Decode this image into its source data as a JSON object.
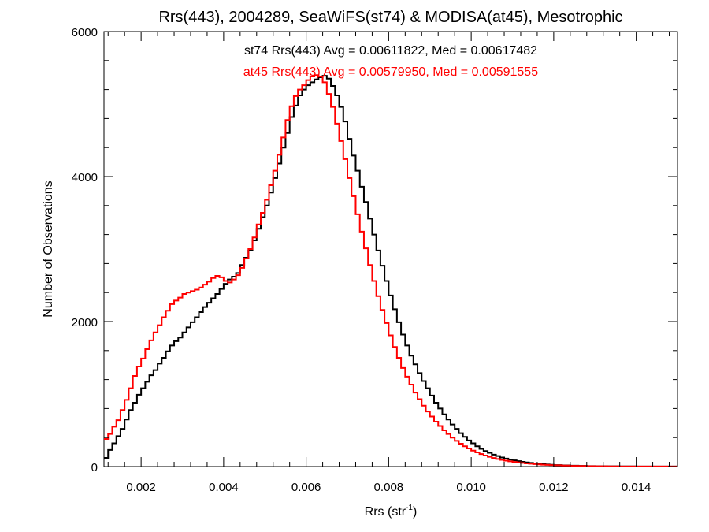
{
  "chart_data": {
    "type": "line",
    "title": "Rrs(443), 2004289, SeaWiFS(st74) & MODISA(at45), Mesotrophic",
    "xlabel_main": "Rrs (str",
    "xlabel_sup": "-1",
    "xlabel_close": ")",
    "ylabel": "Number of Observations",
    "xlim": [
      0.0011,
      0.015
    ],
    "ylim": [
      0,
      6000
    ],
    "x_ticks": [
      "0.002",
      "0.004",
      "0.006",
      "0.008",
      "0.010",
      "0.012",
      "0.014"
    ],
    "y_ticks": [
      "0",
      "2000",
      "4000",
      "6000"
    ],
    "grid": false,
    "annotations": [
      {
        "text": "st74 Rrs(443) Avg = 0.00611822, Med = 0.00617482",
        "color": "#000000"
      },
      {
        "text": "at45 Rrs(443) Avg = 0.00579950, Med = 0.00591555",
        "color": "#ff0000"
      }
    ],
    "series": [
      {
        "color": "#000000",
        "style": "step",
        "points": [
          [
            0.0011,
            120
          ],
          [
            0.0012,
            230
          ],
          [
            0.0013,
            320
          ],
          [
            0.0014,
            420
          ],
          [
            0.0015,
            520
          ],
          [
            0.0016,
            650
          ],
          [
            0.0017,
            780
          ],
          [
            0.0018,
            880
          ],
          [
            0.0019,
            990
          ],
          [
            0.002,
            1080
          ],
          [
            0.0021,
            1170
          ],
          [
            0.0022,
            1260
          ],
          [
            0.0023,
            1330
          ],
          [
            0.0024,
            1420
          ],
          [
            0.0025,
            1500
          ],
          [
            0.0026,
            1590
          ],
          [
            0.0027,
            1670
          ],
          [
            0.0028,
            1730
          ],
          [
            0.0029,
            1780
          ],
          [
            0.003,
            1850
          ],
          [
            0.0031,
            1920
          ],
          [
            0.0032,
            1990
          ],
          [
            0.0033,
            2060
          ],
          [
            0.0034,
            2130
          ],
          [
            0.0035,
            2200
          ],
          [
            0.0036,
            2260
          ],
          [
            0.0037,
            2320
          ],
          [
            0.0038,
            2380
          ],
          [
            0.0039,
            2450
          ],
          [
            0.004,
            2520
          ],
          [
            0.0041,
            2580
          ],
          [
            0.0042,
            2620
          ],
          [
            0.0043,
            2670
          ],
          [
            0.0044,
            2780
          ],
          [
            0.0045,
            2880
          ],
          [
            0.0046,
            2980
          ],
          [
            0.0047,
            3120
          ],
          [
            0.0048,
            3280
          ],
          [
            0.0049,
            3440
          ],
          [
            0.005,
            3600
          ],
          [
            0.0051,
            3780
          ],
          [
            0.0052,
            3980
          ],
          [
            0.0053,
            4180
          ],
          [
            0.0054,
            4400
          ],
          [
            0.0055,
            4600
          ],
          [
            0.0056,
            4820
          ],
          [
            0.0057,
            4980
          ],
          [
            0.0058,
            5120
          ],
          [
            0.0059,
            5200
          ],
          [
            0.006,
            5260
          ],
          [
            0.0061,
            5300
          ],
          [
            0.0062,
            5340
          ],
          [
            0.0063,
            5370
          ],
          [
            0.0064,
            5390
          ],
          [
            0.0065,
            5350
          ],
          [
            0.0066,
            5250
          ],
          [
            0.0067,
            5120
          ],
          [
            0.0068,
            4960
          ],
          [
            0.0069,
            4760
          ],
          [
            0.007,
            4520
          ],
          [
            0.0071,
            4290
          ],
          [
            0.0072,
            4080
          ],
          [
            0.0073,
            3860
          ],
          [
            0.0074,
            3650
          ],
          [
            0.0075,
            3420
          ],
          [
            0.0076,
            3200
          ],
          [
            0.0077,
            2980
          ],
          [
            0.0078,
            2770
          ],
          [
            0.0079,
            2560
          ],
          [
            0.008,
            2360
          ],
          [
            0.0081,
            2170
          ],
          [
            0.0082,
            1990
          ],
          [
            0.0083,
            1820
          ],
          [
            0.0084,
            1670
          ],
          [
            0.0085,
            1530
          ],
          [
            0.0086,
            1410
          ],
          [
            0.0087,
            1290
          ],
          [
            0.0088,
            1180
          ],
          [
            0.0089,
            1080
          ],
          [
            0.009,
            980
          ],
          [
            0.0091,
            880
          ],
          [
            0.0092,
            800
          ],
          [
            0.0093,
            720
          ],
          [
            0.0094,
            650
          ],
          [
            0.0095,
            580
          ],
          [
            0.0096,
            520
          ],
          [
            0.0097,
            460
          ],
          [
            0.0098,
            410
          ],
          [
            0.0099,
            360
          ],
          [
            0.01,
            320
          ],
          [
            0.0101,
            280
          ],
          [
            0.0102,
            245
          ],
          [
            0.0103,
            215
          ],
          [
            0.0104,
            190
          ],
          [
            0.0105,
            165
          ],
          [
            0.0106,
            145
          ],
          [
            0.0107,
            125
          ],
          [
            0.0108,
            110
          ],
          [
            0.0109,
            95
          ],
          [
            0.011,
            85
          ],
          [
            0.0111,
            75
          ],
          [
            0.0112,
            65
          ],
          [
            0.0113,
            57
          ],
          [
            0.0114,
            50
          ],
          [
            0.0115,
            44
          ],
          [
            0.0116,
            38
          ],
          [
            0.0117,
            33
          ],
          [
            0.0118,
            28
          ],
          [
            0.0119,
            24
          ],
          [
            0.012,
            21
          ],
          [
            0.0122,
            16
          ],
          [
            0.0124,
            12
          ],
          [
            0.0126,
            9
          ],
          [
            0.0128,
            7
          ],
          [
            0.013,
            5
          ],
          [
            0.0133,
            4
          ],
          [
            0.0136,
            3
          ],
          [
            0.014,
            2
          ],
          [
            0.0145,
            1
          ],
          [
            0.015,
            1
          ]
        ]
      },
      {
        "color": "#ff0000",
        "style": "step",
        "points": [
          [
            0.0011,
            380
          ],
          [
            0.0012,
            450
          ],
          [
            0.0013,
            550
          ],
          [
            0.0014,
            640
          ],
          [
            0.0015,
            780
          ],
          [
            0.0016,
            920
          ],
          [
            0.0017,
            1080
          ],
          [
            0.0018,
            1250
          ],
          [
            0.0019,
            1380
          ],
          [
            0.002,
            1490
          ],
          [
            0.0021,
            1620
          ],
          [
            0.0022,
            1740
          ],
          [
            0.0023,
            1850
          ],
          [
            0.0024,
            1950
          ],
          [
            0.0025,
            2060
          ],
          [
            0.0026,
            2150
          ],
          [
            0.0027,
            2240
          ],
          [
            0.0028,
            2290
          ],
          [
            0.0029,
            2330
          ],
          [
            0.003,
            2380
          ],
          [
            0.0031,
            2400
          ],
          [
            0.0032,
            2420
          ],
          [
            0.0033,
            2440
          ],
          [
            0.0034,
            2470
          ],
          [
            0.0035,
            2510
          ],
          [
            0.0036,
            2550
          ],
          [
            0.0037,
            2600
          ],
          [
            0.0038,
            2630
          ],
          [
            0.0039,
            2610
          ],
          [
            0.004,
            2560
          ],
          [
            0.0041,
            2540
          ],
          [
            0.0042,
            2580
          ],
          [
            0.0043,
            2640
          ],
          [
            0.0044,
            2740
          ],
          [
            0.0045,
            2870
          ],
          [
            0.0046,
            3000
          ],
          [
            0.0047,
            3160
          ],
          [
            0.0048,
            3340
          ],
          [
            0.0049,
            3500
          ],
          [
            0.005,
            3680
          ],
          [
            0.0051,
            3880
          ],
          [
            0.0052,
            4080
          ],
          [
            0.0053,
            4300
          ],
          [
            0.0054,
            4540
          ],
          [
            0.0055,
            4780
          ],
          [
            0.0056,
            4970
          ],
          [
            0.0057,
            5110
          ],
          [
            0.0058,
            5200
          ],
          [
            0.0059,
            5260
          ],
          [
            0.006,
            5330
          ],
          [
            0.0061,
            5380
          ],
          [
            0.0062,
            5400
          ],
          [
            0.0063,
            5380
          ],
          [
            0.0064,
            5300
          ],
          [
            0.0065,
            5140
          ],
          [
            0.0066,
            4960
          ],
          [
            0.0067,
            4730
          ],
          [
            0.0068,
            4490
          ],
          [
            0.0069,
            4240
          ],
          [
            0.007,
            3980
          ],
          [
            0.0071,
            3730
          ],
          [
            0.0072,
            3480
          ],
          [
            0.0073,
            3240
          ],
          [
            0.0074,
            3010
          ],
          [
            0.0075,
            2780
          ],
          [
            0.0076,
            2560
          ],
          [
            0.0077,
            2350
          ],
          [
            0.0078,
            2160
          ],
          [
            0.0079,
            1980
          ],
          [
            0.008,
            1810
          ],
          [
            0.0081,
            1650
          ],
          [
            0.0082,
            1500
          ],
          [
            0.0083,
            1360
          ],
          [
            0.0084,
            1240
          ],
          [
            0.0085,
            1130
          ],
          [
            0.0086,
            1020
          ],
          [
            0.0087,
            930
          ],
          [
            0.0088,
            840
          ],
          [
            0.0089,
            760
          ],
          [
            0.009,
            690
          ],
          [
            0.0091,
            620
          ],
          [
            0.0092,
            560
          ],
          [
            0.0093,
            500
          ],
          [
            0.0094,
            450
          ],
          [
            0.0095,
            400
          ],
          [
            0.0096,
            355
          ],
          [
            0.0097,
            315
          ],
          [
            0.0098,
            280
          ],
          [
            0.0099,
            250
          ],
          [
            0.01,
            220
          ],
          [
            0.0101,
            195
          ],
          [
            0.0102,
            172
          ],
          [
            0.0103,
            152
          ],
          [
            0.0104,
            134
          ],
          [
            0.0105,
            118
          ],
          [
            0.0106,
            104
          ],
          [
            0.0107,
            92
          ],
          [
            0.0108,
            81
          ],
          [
            0.0109,
            72
          ],
          [
            0.011,
            64
          ],
          [
            0.0111,
            57
          ],
          [
            0.0112,
            50
          ],
          [
            0.0113,
            44
          ],
          [
            0.0114,
            39
          ],
          [
            0.0115,
            34
          ],
          [
            0.0116,
            30
          ],
          [
            0.0117,
            26
          ],
          [
            0.0118,
            23
          ],
          [
            0.0119,
            20
          ],
          [
            0.012,
            18
          ],
          [
            0.0122,
            14
          ],
          [
            0.0124,
            10
          ],
          [
            0.0126,
            8
          ],
          [
            0.0128,
            6
          ],
          [
            0.013,
            4
          ],
          [
            0.0133,
            3
          ],
          [
            0.0136,
            2
          ],
          [
            0.014,
            2
          ],
          [
            0.0145,
            1
          ],
          [
            0.015,
            1
          ]
        ]
      }
    ]
  }
}
